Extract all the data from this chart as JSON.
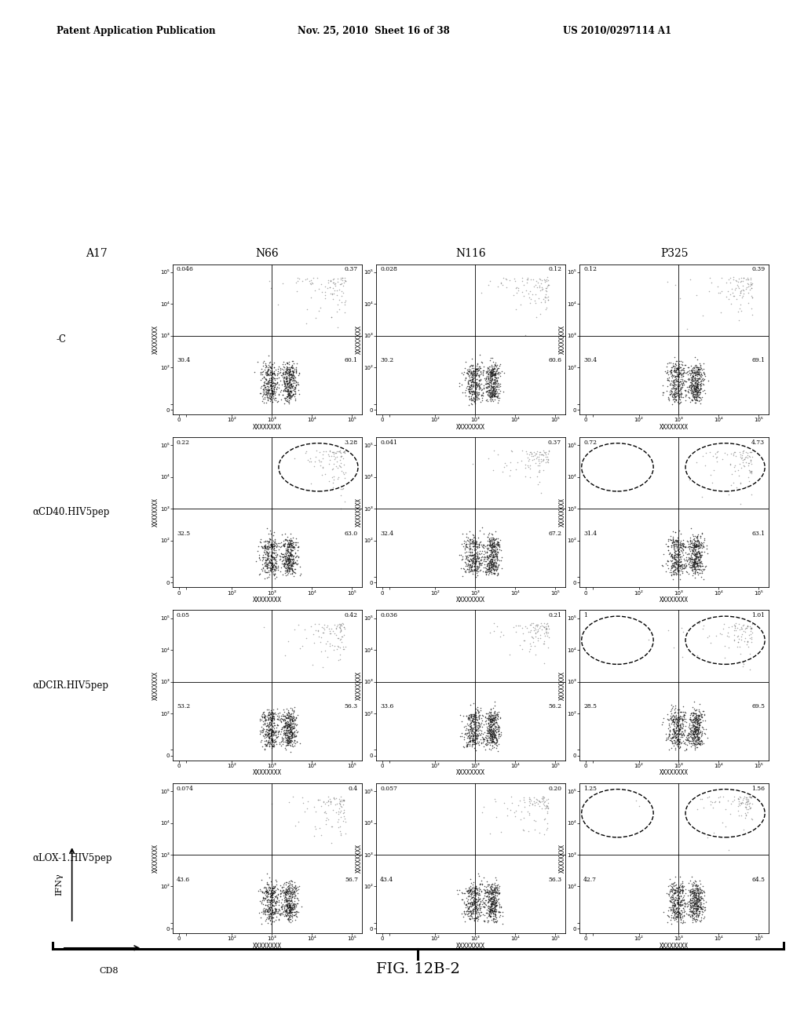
{
  "header_left": "Patent Application Publication",
  "header_mid": "Nov. 25, 2010  Sheet 16 of 38",
  "header_right": "US 2010/0297114 A1",
  "col_labels": [
    "A17",
    "N66",
    "N116",
    "P325"
  ],
  "row_labels": [
    "-C",
    "αCD40.HIV5pep",
    "αDCIR.HIV5pep",
    "αLOX-1.HIV5pep"
  ],
  "figure_label": "FIG. 12B-2",
  "quadrant_values": {
    "row0": {
      "col1": {
        "UL": "0.046",
        "UR": "0.37",
        "LL": "30.4",
        "LR": "60.1",
        "circle_UR": false,
        "circle_UL": false
      },
      "col2": {
        "UL": "0.028",
        "UR": "0.12",
        "LL": "30.2",
        "LR": "60.6",
        "circle_UR": false,
        "circle_UL": false
      },
      "col3": {
        "UL": "0.12",
        "UR": "0.39",
        "LL": "30.4",
        "LR": "69.1",
        "circle_UR": false,
        "circle_UL": false
      }
    },
    "row1": {
      "col1": {
        "UL": "0.22",
        "UR": "3.28",
        "LL": "32.5",
        "LR": "63.0",
        "circle_UR": true,
        "circle_UL": false
      },
      "col2": {
        "UL": "0.041",
        "UR": "0.37",
        "LL": "32.4",
        "LR": "67.2",
        "circle_UR": false,
        "circle_UL": false
      },
      "col3": {
        "UL": "0.72",
        "UR": "4.73",
        "LL": "31.4",
        "LR": "63.1",
        "circle_UR": true,
        "circle_UL": true
      }
    },
    "row2": {
      "col1": {
        "UL": "0.05",
        "UR": "0.42",
        "LL": "53.2",
        "LR": "56.3",
        "circle_UR": false,
        "circle_UL": false
      },
      "col2": {
        "UL": "0.036",
        "UR": "0.21",
        "LL": "33.6",
        "LR": "56.2",
        "circle_UR": false,
        "circle_UL": false
      },
      "col3": {
        "UL": "1",
        "UR": "1.01",
        "LL": "28.5",
        "LR": "69.5",
        "circle_UR": true,
        "circle_UL": true
      }
    },
    "row3": {
      "col1": {
        "UL": "0.074",
        "UR": "0.4",
        "LL": "43.6",
        "LR": "56.7",
        "circle_UR": false,
        "circle_UL": false
      },
      "col2": {
        "UL": "0.057",
        "UR": "0.20",
        "LL": "43.4",
        "LR": "56.3",
        "circle_UR": false,
        "circle_UL": false
      },
      "col3": {
        "UL": "1.25",
        "UR": "1.56",
        "LL": "42.7",
        "LR": "64.5",
        "circle_UR": true,
        "circle_UL": true
      }
    }
  },
  "background_color": "#ffffff",
  "axes_label_x": "XXXXXXXX",
  "axes_label_y": "XXXXXXXX",
  "ylabel_arrow": "IFNγ",
  "xlabel_arrow": "CD8"
}
